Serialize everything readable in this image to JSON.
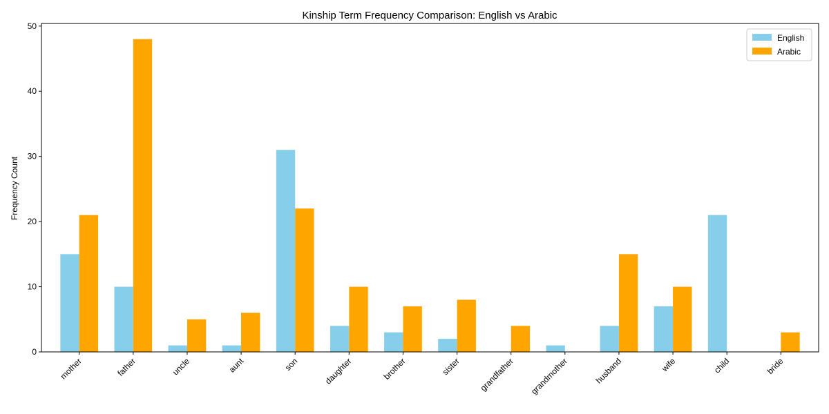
{
  "chart_data": {
    "type": "bar",
    "title": "Kinship Term Frequency Comparison: English vs Arabic",
    "xlabel": "",
    "ylabel": "Frequency Count",
    "ylim": [
      0,
      50.4
    ],
    "yticks": [
      0,
      10,
      20,
      30,
      40,
      50
    ],
    "grid": false,
    "legend_position": "top-right",
    "categories": [
      "mother",
      "father",
      "uncle",
      "aunt",
      "son",
      "daughter",
      "brother",
      "sister",
      "grandfather",
      "grandmother",
      "husband",
      "wife",
      "child",
      "bride"
    ],
    "series": [
      {
        "name": "English",
        "color": "#87ceeb",
        "values": [
          15,
          10,
          1,
          1,
          31,
          4,
          3,
          2,
          0,
          1,
          4,
          7,
          21,
          0
        ]
      },
      {
        "name": "Arabic",
        "color": "#ffa500",
        "values": [
          21,
          48,
          5,
          6,
          22,
          10,
          7,
          8,
          4,
          0,
          15,
          10,
          0,
          3
        ]
      }
    ]
  }
}
